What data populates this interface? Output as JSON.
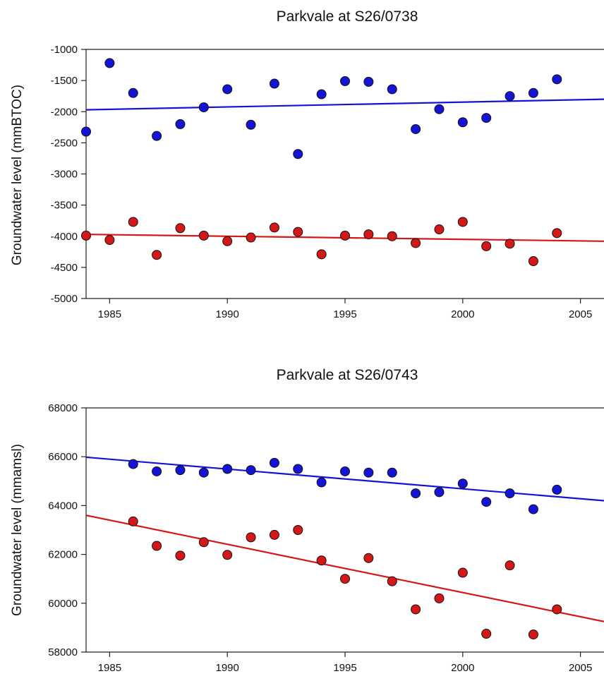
{
  "chart_data": [
    {
      "type": "scatter",
      "title": "Parkvale at S26/0738",
      "xlabel": "",
      "ylabel": "Groundwater level (mmBTOC)",
      "xlim": [
        1984,
        2006
      ],
      "ylim": [
        -5000,
        -1000
      ],
      "xticks": [
        1985,
        1990,
        1995,
        2000,
        2005
      ],
      "yticks": [
        -5000,
        -4500,
        -4000,
        -3500,
        -3000,
        -2500,
        -2000,
        -1500,
        -1000
      ],
      "grid": false,
      "legend": "none",
      "series": [
        {
          "color": "#1414d6",
          "points": [
            [
              1984,
              -2320
            ],
            [
              1985,
              -1220
            ],
            [
              1986,
              -1700
            ],
            [
              1987,
              -2390
            ],
            [
              1988,
              -2200
            ],
            [
              1989,
              -1930
            ],
            [
              1990,
              -1640
            ],
            [
              1991,
              -2210
            ],
            [
              1992,
              -1550
            ],
            [
              1993,
              -2680
            ],
            [
              1994,
              -1720
            ],
            [
              1995,
              -1510
            ],
            [
              1996,
              -1520
            ],
            [
              1997,
              -1640
            ],
            [
              1998,
              -2280
            ],
            [
              1999,
              -1960
            ],
            [
              2000,
              -2170
            ],
            [
              2001,
              -2100
            ],
            [
              2002,
              -1750
            ],
            [
              2003,
              -1700
            ],
            [
              2004,
              -1480
            ]
          ],
          "trend": [
            [
              1984,
              -1970
            ],
            [
              2006,
              -1800
            ]
          ]
        },
        {
          "color": "#d41818",
          "points": [
            [
              1984,
              -3990
            ],
            [
              1985,
              -4060
            ],
            [
              1986,
              -3770
            ],
            [
              1987,
              -4300
            ],
            [
              1988,
              -3870
            ],
            [
              1989,
              -3990
            ],
            [
              1990,
              -4080
            ],
            [
              1991,
              -4020
            ],
            [
              1992,
              -3860
            ],
            [
              1993,
              -3930
            ],
            [
              1994,
              -4290
            ],
            [
              1995,
              -3990
            ],
            [
              1996,
              -3970
            ],
            [
              1997,
              -4000
            ],
            [
              1998,
              -4110
            ],
            [
              1999,
              -3890
            ],
            [
              2000,
              -3770
            ],
            [
              2001,
              -4160
            ],
            [
              2002,
              -4120
            ],
            [
              2003,
              -4400
            ],
            [
              2004,
              -3950
            ]
          ],
          "trend": [
            [
              1984,
              -3970
            ],
            [
              2006,
              -4080
            ]
          ]
        }
      ]
    },
    {
      "type": "scatter",
      "title": "Parkvale at S26/0743",
      "xlabel": "",
      "ylabel": "Groundwater level (mmamsl)",
      "xlim": [
        1984,
        2006
      ],
      "ylim": [
        58000,
        68000
      ],
      "xticks": [
        1985,
        1990,
        1995,
        2000,
        2005
      ],
      "yticks": [
        58000,
        60000,
        62000,
        64000,
        66000,
        68000
      ],
      "grid": false,
      "legend": "none",
      "series": [
        {
          "color": "#1414d6",
          "points": [
            [
              1986,
              65700
            ],
            [
              1987,
              65400
            ],
            [
              1988,
              65450
            ],
            [
              1989,
              65350
            ],
            [
              1990,
              65500
            ],
            [
              1991,
              65450
            ],
            [
              1992,
              65750
            ],
            [
              1993,
              65500
            ],
            [
              1994,
              64950
            ],
            [
              1995,
              65400
            ],
            [
              1996,
              65350
            ],
            [
              1997,
              65350
            ],
            [
              1998,
              64500
            ],
            [
              1999,
              64550
            ],
            [
              2000,
              64900
            ],
            [
              2001,
              64150
            ],
            [
              2002,
              64500
            ],
            [
              2003,
              63850
            ],
            [
              2004,
              64650
            ]
          ],
          "trend": [
            [
              1984,
              65980
            ],
            [
              2006,
              64200
            ]
          ]
        },
        {
          "color": "#d41818",
          "points": [
            [
              1986,
              63350
            ],
            [
              1987,
              62350
            ],
            [
              1988,
              61950
            ],
            [
              1989,
              62500
            ],
            [
              1990,
              61980
            ],
            [
              1991,
              62700
            ],
            [
              1992,
              62800
            ],
            [
              1993,
              63000
            ],
            [
              1994,
              61750
            ],
            [
              1995,
              61000
            ],
            [
              1996,
              61850
            ],
            [
              1997,
              60900
            ],
            [
              1998,
              59750
            ],
            [
              1999,
              60200
            ],
            [
              2000,
              61250
            ],
            [
              2001,
              58750
            ],
            [
              2002,
              61550
            ],
            [
              2003,
              58720
            ],
            [
              2004,
              59750
            ]
          ],
          "trend": [
            [
              1984,
              63600
            ],
            [
              2006,
              59250
            ]
          ]
        }
      ]
    }
  ]
}
